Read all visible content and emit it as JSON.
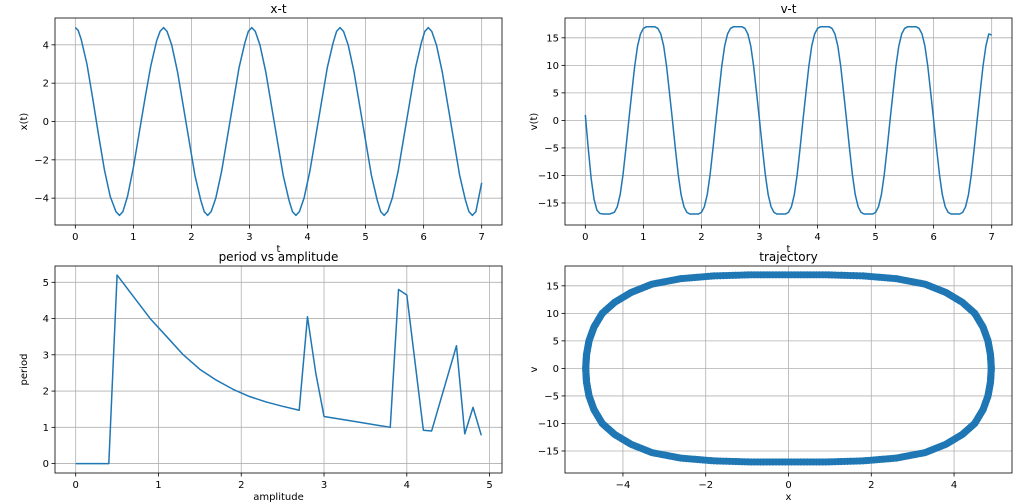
{
  "chart_data": [
    {
      "type": "line",
      "title": "x-t",
      "xlabel": "t",
      "ylabel": "x(t)",
      "xlim": [
        -0.35,
        7.35
      ],
      "ylim": [
        -5.4,
        5.4
      ],
      "xticks": [
        0,
        1,
        2,
        3,
        4,
        5,
        6,
        7
      ],
      "yticks": [
        -4,
        -2,
        0,
        2,
        4
      ],
      "ytick_labels": [
        "−4",
        "−2",
        "0",
        "2",
        "4"
      ],
      "grid": true,
      "color": "#1f77b4",
      "series": [
        {
          "x": [
            0,
            0.05,
            0.1,
            0.2,
            0.3,
            0.4,
            0.5,
            0.6,
            0.7,
            0.76,
            0.82,
            0.9,
            1.0,
            1.1,
            1.2,
            1.3,
            1.4,
            1.46,
            1.52,
            1.58,
            1.66,
            1.76,
            1.86,
            1.96,
            2.06,
            2.16,
            2.22,
            2.28,
            2.34,
            2.42,
            2.52,
            2.62,
            2.72,
            2.82,
            2.92,
            2.98,
            3.04,
            3.1,
            3.18,
            3.28,
            3.38,
            3.48,
            3.58,
            3.68,
            3.74,
            3.8,
            3.86,
            3.94,
            4.04,
            4.14,
            4.24,
            4.34,
            4.44,
            4.5,
            4.56,
            4.62,
            4.7,
            4.8,
            4.9,
            5.0,
            5.1,
            5.2,
            5.26,
            5.32,
            5.38,
            5.46,
            5.56,
            5.66,
            5.76,
            5.86,
            5.96,
            6.02,
            6.08,
            6.14,
            6.22,
            6.32,
            6.42,
            6.52,
            6.62,
            6.72,
            6.78,
            6.84,
            6.9,
            7.0
          ],
          "y": [
            4.9,
            4.75,
            4.3,
            3.0,
            1.2,
            -0.7,
            -2.5,
            -3.9,
            -4.7,
            -4.9,
            -4.7,
            -3.9,
            -2.4,
            -0.6,
            1.2,
            2.9,
            4.2,
            4.7,
            4.9,
            4.7,
            4.0,
            2.6,
            0.8,
            -1.0,
            -2.8,
            -4.1,
            -4.7,
            -4.9,
            -4.7,
            -4.0,
            -2.6,
            -0.8,
            1.0,
            2.8,
            4.1,
            4.7,
            4.9,
            4.7,
            4.0,
            2.6,
            0.8,
            -1.0,
            -2.8,
            -4.1,
            -4.7,
            -4.9,
            -4.7,
            -4.0,
            -2.6,
            -0.8,
            1.0,
            2.8,
            4.1,
            4.7,
            4.9,
            4.7,
            4.0,
            2.6,
            0.8,
            -1.0,
            -2.8,
            -4.1,
            -4.7,
            -4.9,
            -4.7,
            -4.0,
            -2.6,
            -0.8,
            1.0,
            2.8,
            4.1,
            4.7,
            4.9,
            4.7,
            4.0,
            2.6,
            0.8,
            -1.0,
            -2.8,
            -4.1,
            -4.7,
            -4.9,
            -4.7,
            -3.2
          ]
        }
      ]
    },
    {
      "type": "line",
      "title": "v-t",
      "xlabel": "t",
      "ylabel": "v(t)",
      "xlim": [
        -0.35,
        7.35
      ],
      "ylim": [
        -19.0,
        18.6
      ],
      "xticks": [
        0,
        1,
        2,
        3,
        4,
        5,
        6,
        7
      ],
      "yticks": [
        -15,
        -10,
        -5,
        0,
        5,
        10,
        15
      ],
      "ytick_labels": [
        "−15",
        "−10",
        "−5",
        "0",
        "5",
        "10",
        "15"
      ],
      "grid": true,
      "color": "#1f77b4",
      "series": [
        {
          "x": [
            0,
            0.05,
            0.1,
            0.15,
            0.2,
            0.25,
            0.3,
            0.42,
            0.5,
            0.55,
            0.6,
            0.65,
            0.7,
            0.75,
            0.8,
            0.85,
            0.9,
            0.95,
            1.0,
            1.05,
            1.1,
            1.2,
            1.25,
            1.3,
            1.35,
            1.4,
            1.45,
            1.5,
            1.55,
            1.6,
            1.65,
            1.7,
            1.75,
            1.8,
            1.85,
            1.95,
            2.0,
            2.05,
            2.1,
            2.15,
            2.2,
            2.25,
            2.3,
            2.35,
            2.4,
            2.45,
            2.5,
            2.55,
            2.6,
            2.7,
            2.75,
            2.8,
            2.85,
            2.9,
            2.95,
            3.0,
            3.05,
            3.1,
            3.15,
            3.2,
            3.25,
            3.3,
            3.35,
            3.45,
            3.5,
            3.55,
            3.6,
            3.65,
            3.7,
            3.75,
            3.8,
            3.85,
            3.9,
            3.95,
            4.0,
            4.05,
            4.1,
            4.2,
            4.25,
            4.3,
            4.35,
            4.4,
            4.45,
            4.5,
            4.55,
            4.6,
            4.65,
            4.7,
            4.75,
            4.8,
            4.85,
            4.95,
            5.0,
            5.05,
            5.1,
            5.15,
            5.2,
            5.25,
            5.3,
            5.35,
            5.4,
            5.45,
            5.5,
            5.55,
            5.6,
            5.7,
            5.75,
            5.8,
            5.85,
            5.9,
            5.95,
            6.0,
            6.05,
            6.1,
            6.15,
            6.2,
            6.25,
            6.3,
            6.35,
            6.45,
            6.5,
            6.55,
            6.6,
            6.65,
            6.7,
            6.75,
            6.8,
            6.85,
            6.9,
            6.95,
            7.0
          ],
          "y": [
            1.0,
            -5.0,
            -10.5,
            -14.3,
            -16.3,
            -16.9,
            -17.0,
            -17.0,
            -16.7,
            -15.7,
            -13.5,
            -9.8,
            -5.0,
            0.1,
            5.0,
            9.8,
            13.5,
            15.7,
            16.7,
            17.0,
            17.0,
            17.0,
            16.7,
            15.7,
            13.5,
            9.8,
            5.0,
            0.1,
            -5.0,
            -9.8,
            -13.5,
            -15.7,
            -16.7,
            -17.0,
            -17.0,
            -17.0,
            -16.7,
            -15.7,
            -13.5,
            -9.8,
            -5.0,
            0.1,
            5.0,
            9.8,
            13.5,
            15.7,
            16.7,
            17.0,
            17.0,
            17.0,
            16.7,
            15.7,
            13.5,
            9.8,
            5.0,
            0.1,
            -5.0,
            -9.8,
            -13.5,
            -15.7,
            -16.7,
            -17.0,
            -17.0,
            -17.0,
            -16.7,
            -15.7,
            -13.5,
            -9.8,
            -5.0,
            0.1,
            5.0,
            9.8,
            13.5,
            15.7,
            16.7,
            17.0,
            17.0,
            17.0,
            16.7,
            15.7,
            13.5,
            9.8,
            5.0,
            0.1,
            -5.0,
            -9.8,
            -13.5,
            -15.7,
            -16.7,
            -17.0,
            -17.0,
            -17.0,
            -16.7,
            -15.7,
            -13.5,
            -9.8,
            -5.0,
            0.1,
            5.0,
            9.8,
            13.5,
            15.7,
            16.7,
            17.0,
            17.0,
            17.0,
            16.7,
            15.7,
            13.5,
            9.8,
            5.0,
            0.1,
            -5.0,
            -9.8,
            -13.5,
            -15.7,
            -16.7,
            -17.0,
            -17.0,
            -17.0,
            -16.7,
            -15.7,
            -13.5,
            -9.8,
            -5.0,
            0.1,
            5.0,
            9.8,
            13.5,
            15.7,
            15.5
          ]
        }
      ]
    },
    {
      "type": "line",
      "title": "period vs amplitude",
      "xlabel": "amplitude",
      "ylabel": "period",
      "xlim": [
        -0.25,
        5.15
      ],
      "ylim": [
        -0.26,
        5.45
      ],
      "xticks": [
        0,
        1,
        2,
        3,
        4,
        5
      ],
      "yticks": [
        0,
        1,
        2,
        3,
        4,
        5
      ],
      "ytick_labels": [
        "0",
        "1",
        "2",
        "3",
        "4",
        "5"
      ],
      "grid": true,
      "color": "#1f77b4",
      "series": [
        {
          "x": [
            0.0,
            0.4,
            0.5,
            0.7,
            0.9,
            1.1,
            1.3,
            1.5,
            1.7,
            1.9,
            2.1,
            2.3,
            2.5,
            2.7,
            2.8,
            2.9,
            3.0,
            3.4,
            3.8,
            3.9,
            4.0,
            4.2,
            4.3,
            4.6,
            4.7,
            4.8,
            4.9
          ],
          "y": [
            0.0,
            0.0,
            5.2,
            4.6,
            4.0,
            3.5,
            3.0,
            2.6,
            2.3,
            2.05,
            1.85,
            1.7,
            1.58,
            1.47,
            4.05,
            2.5,
            1.3,
            1.15,
            1.0,
            4.8,
            4.65,
            0.92,
            0.9,
            3.25,
            0.82,
            1.55,
            0.78
          ]
        }
      ]
    },
    {
      "type": "scatter",
      "title": "trajectory",
      "xlabel": "x",
      "ylabel": "v",
      "xlim": [
        -5.4,
        5.4
      ],
      "ylim": [
        -19.0,
        18.6
      ],
      "xticks": [
        -4,
        -2,
        0,
        2,
        4
      ],
      "xtick_labels": [
        "−4",
        "−2",
        "0",
        "2",
        "4"
      ],
      "yticks": [
        -15,
        -10,
        -5,
        0,
        5,
        10,
        15
      ],
      "ytick_labels": [
        "−15",
        "−10",
        "−5",
        "0",
        "5",
        "10",
        "15"
      ],
      "grid": true,
      "color": "#1f77b4",
      "series": [
        {
          "x": [
            -4.9,
            -4.88,
            -4.82,
            -4.7,
            -4.5,
            -4.2,
            -3.8,
            -3.3,
            -2.6,
            -1.8,
            -0.9,
            0.0,
            0.9,
            1.8,
            2.6,
            3.3,
            3.8,
            4.2,
            4.5,
            4.7,
            4.82,
            4.88,
            4.9,
            4.88,
            4.82,
            4.7,
            4.5,
            4.2,
            3.8,
            3.3,
            2.6,
            1.8,
            0.9,
            0.0,
            -0.9,
            -1.8,
            -2.6,
            -3.3,
            -3.8,
            -4.2,
            -4.5,
            -4.7,
            -4.82,
            -4.88,
            -4.9
          ],
          "y": [
            0.0,
            2.5,
            5.0,
            7.5,
            10.0,
            12.0,
            13.8,
            15.3,
            16.3,
            16.8,
            17.0,
            17.0,
            17.0,
            16.8,
            16.3,
            15.3,
            13.8,
            12.0,
            10.0,
            7.5,
            5.0,
            2.5,
            0.0,
            -2.5,
            -5.0,
            -7.5,
            -10.0,
            -12.0,
            -13.8,
            -15.3,
            -16.3,
            -16.8,
            -17.0,
            -17.0,
            -17.0,
            -16.8,
            -16.3,
            -15.3,
            -13.8,
            -12.0,
            -10.0,
            -7.5,
            -5.0,
            -2.5,
            0.0
          ]
        }
      ]
    }
  ]
}
